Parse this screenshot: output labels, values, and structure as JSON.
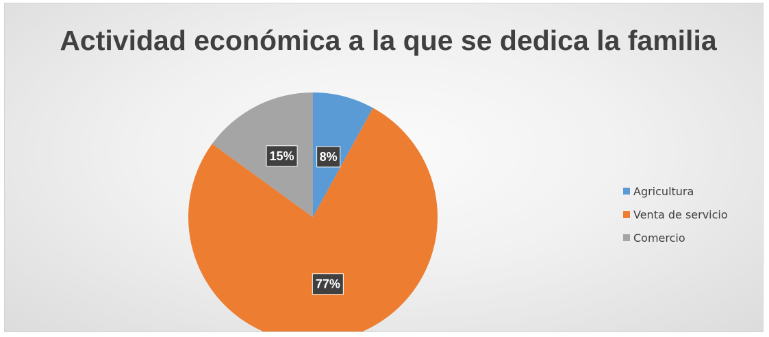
{
  "chart_data": {
    "type": "pie",
    "title": "Actividad económica a la que se dedica la familia",
    "categories": [
      "Agricultura",
      "Venta de servicio",
      "Comercio"
    ],
    "values": [
      8,
      77,
      15
    ],
    "data_labels": [
      "8%",
      "77%",
      "15%"
    ],
    "colors": [
      "#5b9bd5",
      "#ed7d31",
      "#a5a5a5"
    ],
    "legend_position": "right"
  }
}
